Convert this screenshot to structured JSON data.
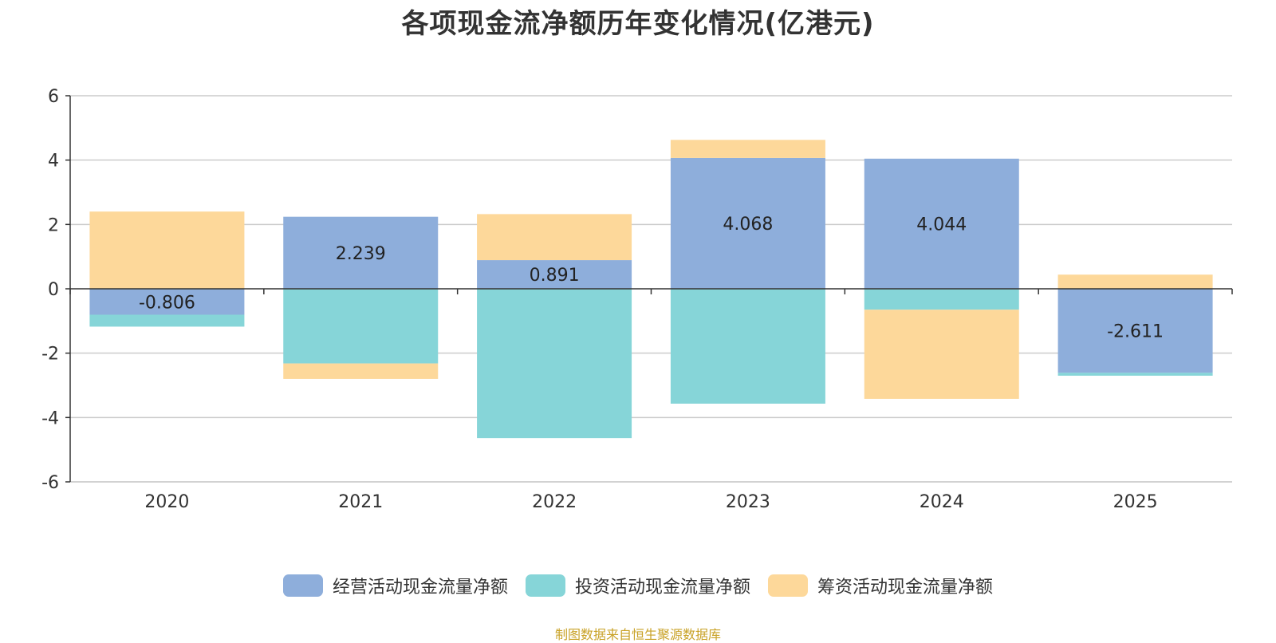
{
  "title": "各项现金流净额历年变化情况(亿港元)",
  "source": "制图数据来自恒生聚源数据库",
  "colors": {
    "operating": "#8eaedb",
    "investing": "#86d5d8",
    "financing": "#fdd89a"
  },
  "legend": [
    {
      "label": "经营活动现金流量净额",
      "color": "#8eaedb"
    },
    {
      "label": "投资活动现金流量净额",
      "color": "#86d5d8"
    },
    {
      "label": "筹资活动现金流量净额",
      "color": "#fdd89a"
    }
  ],
  "chart_data": {
    "type": "bar",
    "stacked": true,
    "title": "各项现金流净额历年变化情况(亿港元)",
    "categories": [
      "2020",
      "2021",
      "2022",
      "2023",
      "2024",
      "2025"
    ],
    "ylim": [
      -6,
      6
    ],
    "yticks": [
      6,
      4,
      2,
      0,
      -2,
      -4,
      -6
    ],
    "grid": true,
    "legend_position": "bottom",
    "series": [
      {
        "name": "经营活动现金流量净额",
        "values": [
          -0.806,
          2.239,
          0.891,
          4.068,
          4.044,
          -2.611
        ],
        "labels": [
          "-0.806",
          "2.239",
          "0.891",
          "4.068",
          "4.044",
          "-2.611"
        ]
      },
      {
        "name": "投资活动现金流量净额",
        "values": [
          -0.37,
          -2.32,
          -4.64,
          -3.57,
          -0.65,
          -0.09
        ]
      },
      {
        "name": "筹资活动现金流量净额",
        "values": [
          2.4,
          -0.48,
          1.43,
          0.56,
          -2.77,
          0.44
        ]
      }
    ]
  }
}
